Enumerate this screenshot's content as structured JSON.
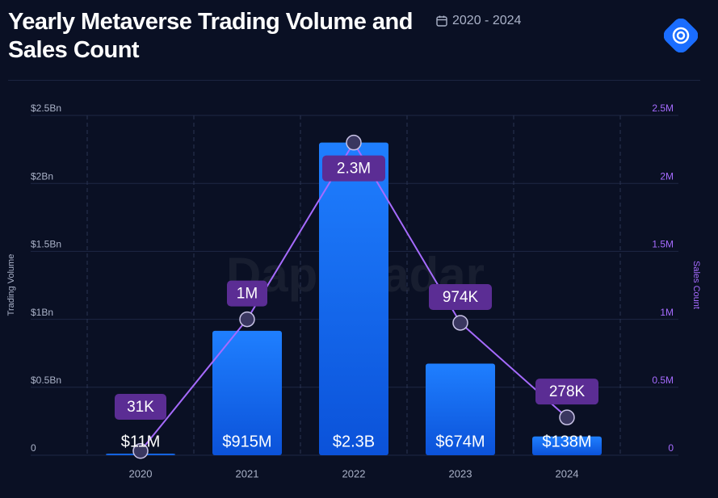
{
  "title": "Yearly Metaverse Trading Volume and Sales Count",
  "date_range": "2020 - 2024",
  "watermark": "DappRadar",
  "chart_data": {
    "type": "bar-line",
    "categories": [
      "2020",
      "2021",
      "2022",
      "2023",
      "2024"
    ],
    "y_label": "Trading Volume",
    "y2_label": "Sales Count",
    "series": [
      {
        "name": "Trading Volume",
        "type": "bar",
        "color": "#1a6dff",
        "values": [
          11000000,
          915000000,
          2300000000,
          674000000,
          138000000
        ],
        "value_labels": [
          "$11M",
          "$915M",
          "$2.3B",
          "$674M",
          "$138M"
        ]
      },
      {
        "name": "Sales Count",
        "type": "line",
        "axis": "y2",
        "color": "#a66bff",
        "values": [
          31000,
          1000000,
          2300000,
          974000,
          278000
        ],
        "value_labels": [
          "31K",
          "1M",
          "2.3M",
          "974K",
          "278K"
        ]
      }
    ],
    "ylim": [
      0,
      2500000000
    ],
    "yticks": [
      0,
      {
        "value": 500000000,
        "label": "$0.5Bn"
      },
      {
        "value": 1000000000,
        "label": "$1Bn"
      },
      {
        "value": 1500000000,
        "label": "$1.5Bn"
      },
      {
        "value": 2000000000,
        "label": "$2Bn"
      },
      {
        "value": 2500000000,
        "label": "$2.5Bn"
      }
    ],
    "y2lim": [
      0,
      2500000
    ],
    "y2ticks": [
      0,
      {
        "value": 500000,
        "label": "0.5M"
      },
      {
        "value": 1000000,
        "label": "1M"
      },
      {
        "value": 1500000,
        "label": "1.5M"
      },
      {
        "value": 2000000,
        "label": "2M"
      },
      {
        "value": 2500000,
        "label": "2.5M"
      }
    ],
    "grid": true
  }
}
